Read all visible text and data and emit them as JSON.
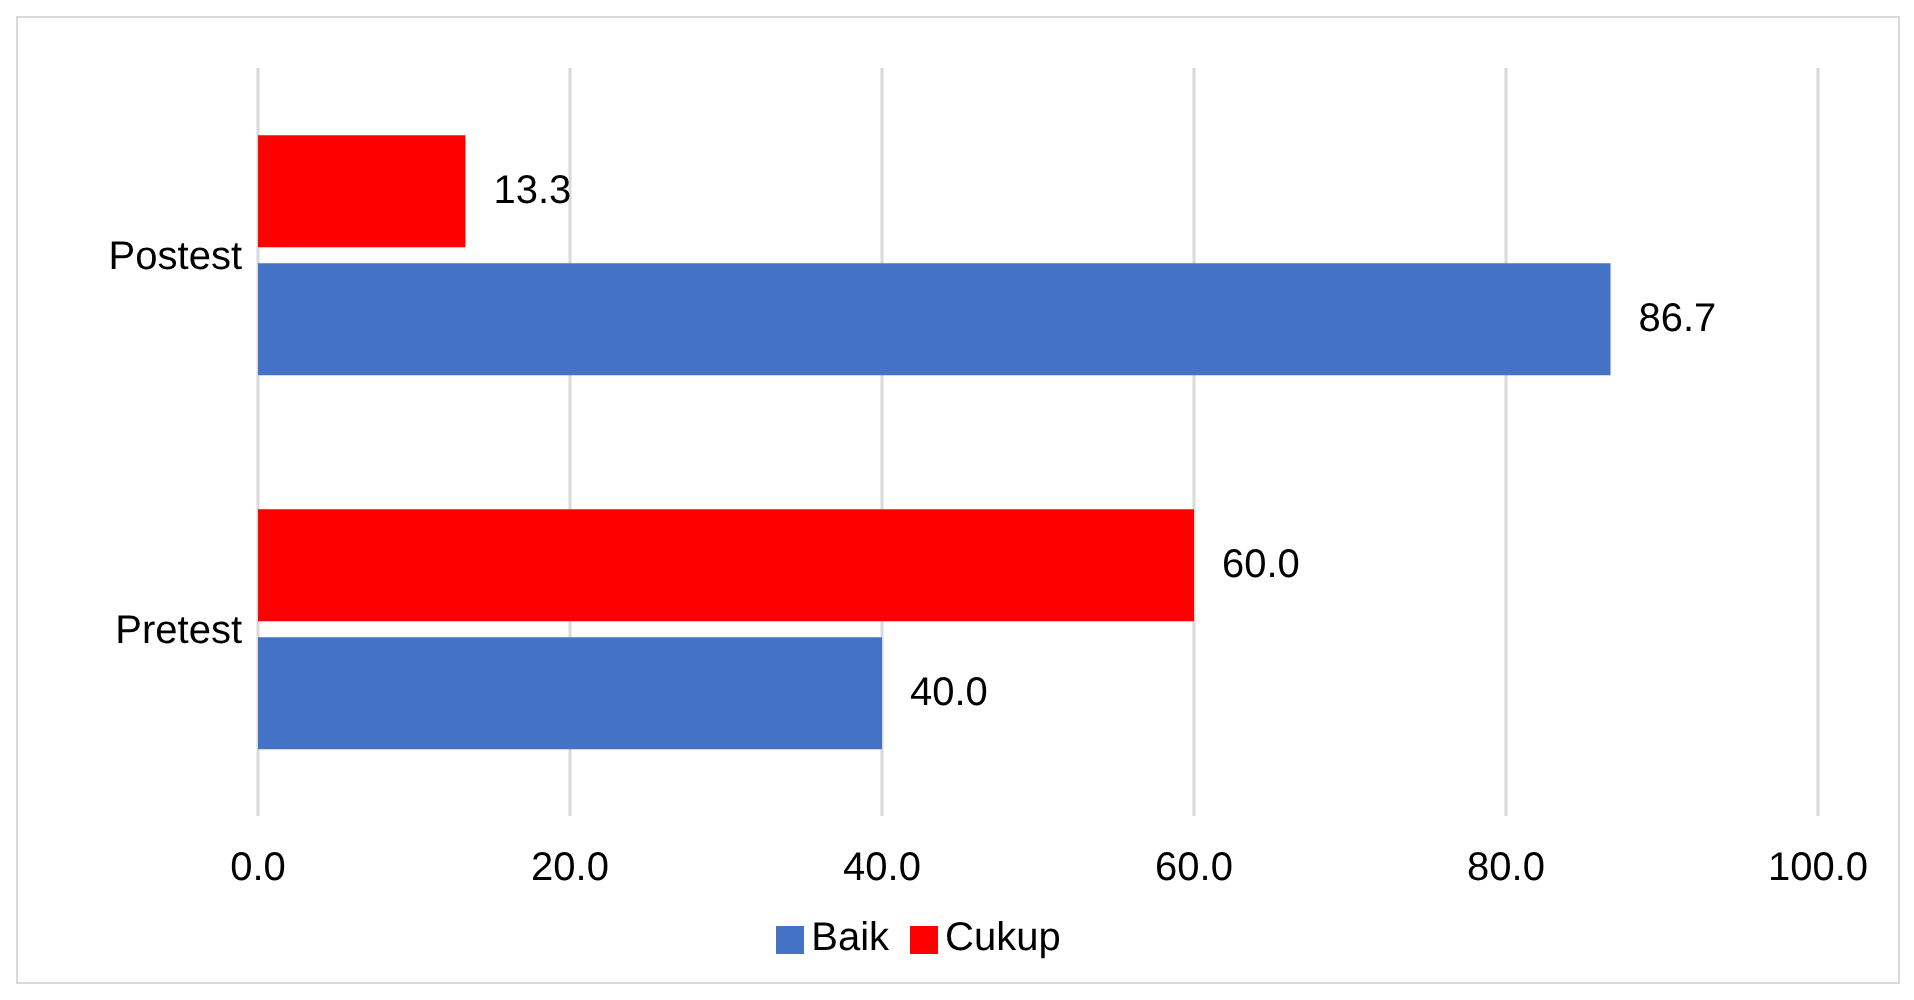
{
  "chart_data": {
    "type": "bar",
    "orientation": "horizontal",
    "categories": [
      "Postest",
      "Pretest"
    ],
    "series": [
      {
        "name": "Cukup",
        "color": "#ff0000",
        "values": [
          13.3,
          60.0
        ],
        "value_labels": [
          "13.3",
          "60.0"
        ]
      },
      {
        "name": "Baik",
        "color": "#4472c4",
        "values": [
          86.7,
          40.0
        ],
        "value_labels": [
          "86.7",
          "40.0"
        ]
      }
    ],
    "xlim": [
      0,
      100
    ],
    "xticks": [
      {
        "value": 0,
        "label": "0.0"
      },
      {
        "value": 20,
        "label": "20.0"
      },
      {
        "value": 40,
        "label": "40.0"
      },
      {
        "value": 60,
        "label": "60.0"
      },
      {
        "value": 80,
        "label": "80.0"
      },
      {
        "value": 100,
        "label": "100.0"
      }
    ],
    "grid": "x",
    "legend": "bottom"
  }
}
